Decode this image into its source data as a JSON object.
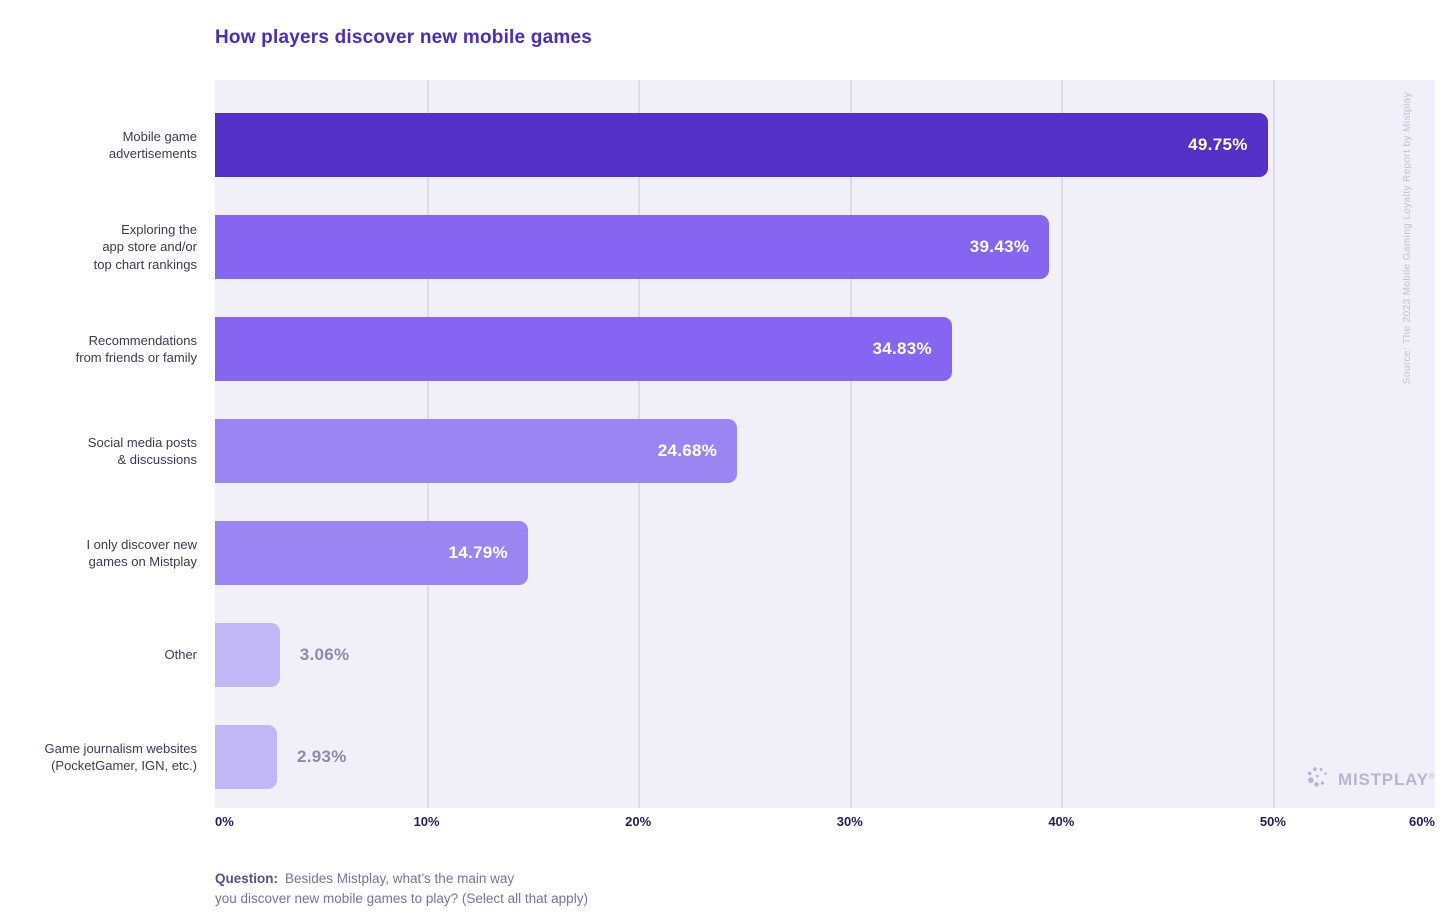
{
  "chart_data": {
    "type": "bar",
    "orientation": "horizontal",
    "title": "How players discover new mobile games",
    "x_max_visible": 57.66,
    "grid": true,
    "x_ticks": [
      {
        "value": 0,
        "label": "0%"
      },
      {
        "value": 10,
        "label": "10%"
      },
      {
        "value": 20,
        "label": "20%"
      },
      {
        "value": 30,
        "label": "30%"
      },
      {
        "value": 40,
        "label": "40%"
      },
      {
        "value": 50,
        "label": "50%"
      },
      {
        "value": 60,
        "label": "60%"
      }
    ],
    "bars": [
      {
        "category": "Mobile game\nadvertisements",
        "value": 49.75,
        "label": "49.75%",
        "color": "#5530C8",
        "label_inside": true
      },
      {
        "category": "Exploring the\napp store and/or\ntop chart rankings",
        "value": 39.43,
        "label": "39.43%",
        "color": "#8665F3",
        "label_inside": true
      },
      {
        "category": "Recommendations\nfrom friends or family",
        "value": 34.83,
        "label": "34.83%",
        "color": "#8665F3",
        "label_inside": true
      },
      {
        "category": "Social media posts\n& discussions",
        "value": 24.68,
        "label": "24.68%",
        "color": "#9A86F3",
        "label_inside": true
      },
      {
        "category": "I only discover new\ngames on Mistplay",
        "value": 14.79,
        "label": "14.79%",
        "color": "#9A86F3",
        "label_inside": true
      },
      {
        "category": "Other",
        "value": 3.06,
        "label": "3.06%",
        "color": "#C1B7F7",
        "label_inside": false
      },
      {
        "category": "Game journalism websites\n(PocketGamer, IGN, etc.)",
        "value": 2.93,
        "label": "2.93%",
        "color": "#C1B7F7",
        "label_inside": false
      }
    ]
  },
  "source_note": "Source: The 2023 Mobile Gaming Loyalty Report by Mistplay",
  "footer": {
    "question_label": "Question:",
    "question_line1": "Besides Mistplay, what’s the main way",
    "question_line2": "you discover new mobile games to play? (Select all that apply)"
  },
  "logo": {
    "icon": "mistplay-dots-icon",
    "text": "MISTPLAY",
    "registered": "®"
  },
  "colors": {
    "title": "#4C2AC4",
    "panel_bg": "#F1F0F8",
    "gridline": "#DDDBE8",
    "axis_label": "#221E52",
    "category_label": "#3D3954",
    "value_inside": "#FFFFFF",
    "value_outside": "#8D89A8",
    "question_text": "#77739B",
    "question_label": "#57527E",
    "source_text": "#C1BED9",
    "logo": "#B7B3D1"
  }
}
